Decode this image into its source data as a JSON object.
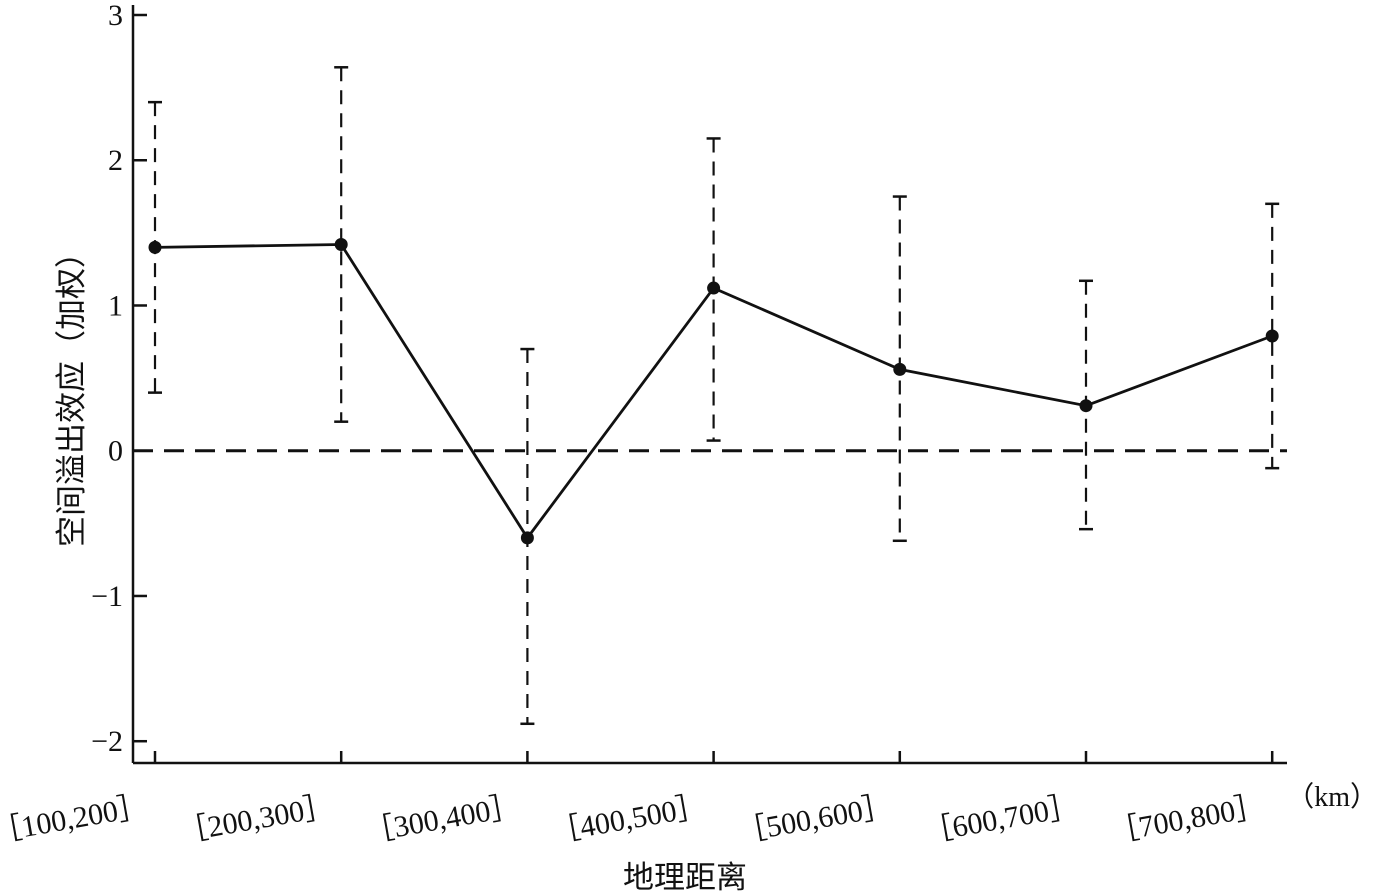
{
  "chart_data": {
    "type": "line",
    "xlabel": "地理距离",
    "ylabel": "空间溢出效应（加权）",
    "x_unit": "（km）",
    "categories": [
      "［100,200］",
      "［200,300］",
      "［300,400］",
      "［400,500］",
      "［500,600］",
      "［600,700］",
      "［700,800］"
    ],
    "series": [
      {
        "values": [
          1.4,
          1.42,
          -0.6,
          1.12,
          0.56,
          0.31,
          0.79
        ],
        "upper": [
          2.4,
          2.64,
          0.7,
          2.15,
          1.75,
          1.17,
          1.7
        ],
        "lower": [
          0.4,
          0.2,
          -1.88,
          0.07,
          -0.62,
          -0.54,
          -0.12
        ]
      }
    ],
    "ylim": [
      -2.15,
      3.0
    ],
    "yticks": [
      -2,
      -1,
      0,
      1,
      2,
      3
    ],
    "ytick_labels": [
      "−2",
      "−1",
      "0",
      "1",
      "2",
      "3"
    ],
    "reference_line": 0,
    "grid": false
  }
}
